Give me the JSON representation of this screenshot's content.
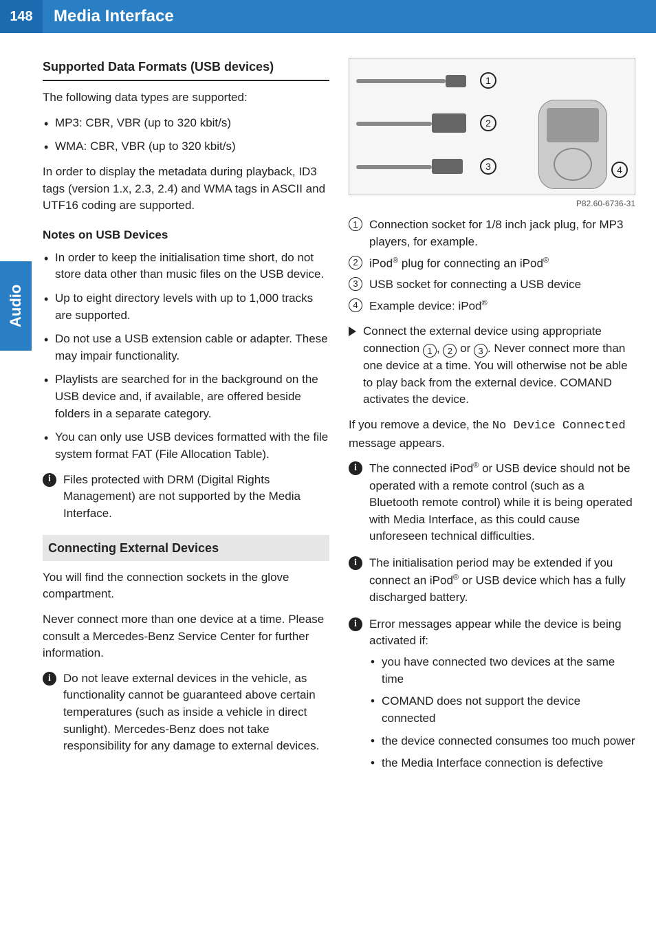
{
  "page_number": "148",
  "header_title": "Media Interface",
  "side_tab": "Audio",
  "colors": {
    "header_bg": "#2a7fc4",
    "page_num_bg": "#1a6bb0",
    "text": "#222222",
    "shaded_bg": "#e6e6e6"
  },
  "left": {
    "section1_title": "Supported Data Formats (USB devices)",
    "intro": "The following data types are supported:",
    "formats": [
      "MP3: CBR, VBR (up to 320 kbit/s)",
      "WMA: CBR, VBR (up to 320 kbit/s)"
    ],
    "metadata_para": "In order to display the metadata during playback, ID3 tags (version 1.x, 2.3, 2.4) and WMA tags in ASCII and UTF16 coding are supported.",
    "notes_title": "Notes on USB Devices",
    "notes": [
      "In order to keep the initialisation time short, do not store data other than music files on the USB device.",
      "Up to eight directory levels with up to 1,000 tracks are supported.",
      "Do not use a USB extension cable or adapter. These may impair functionality.",
      "Playlists are searched for in the background on the USB device and, if available, are offered beside folders in a separate category.",
      "You can only use USB devices formatted with the file system format FAT (File Allocation Table)."
    ],
    "drm_info": "Files protected with DRM (Digital Rights Management) are not supported by the Media Interface.",
    "section2_title": "Connecting External Devices",
    "conn_para1": "You will find the connection sockets in the glove compartment.",
    "conn_para2": "Never connect more than one device at a time. Please consult a Mercedes-Benz Service Center for further information.",
    "conn_info": "Do not leave external devices in the vehicle, as functionality cannot be guaranteed above certain temperatures (such as inside a vehicle in direct sunlight). Mercedes-Benz does not take responsibility for any damage to external devices."
  },
  "right": {
    "diagram_caption": "P82.60-6736-31",
    "diagram_labels": {
      "n1": "1",
      "n2": "2",
      "n3": "3",
      "n4": "4"
    },
    "legend": [
      {
        "n": "1",
        "text": "Connection socket for 1/8 inch jack plug, for MP3 players, for example."
      },
      {
        "n": "2",
        "text_html": "iPod<sup>®</sup> plug for connecting an iPod<sup>®</sup>"
      },
      {
        "n": "3",
        "text": "USB socket for connecting a USB device"
      },
      {
        "n": "4",
        "text_html": "Example device: iPod<sup>®</sup>"
      }
    ],
    "action_pre": "Connect the external device using appropriate connection ",
    "action_mid1": ", ",
    "action_or": " or ",
    "action_post": ". Never connect more than one device at a time. You will otherwise not be able to play back from the external device. COMAND activates the device.",
    "remove_para_pre": "If you remove a device, the ",
    "remove_code": "No Device Connected",
    "remove_para_post": " message appears.",
    "info1_html": "The connected iPod<sup>®</sup> or USB device should not be operated with a remote control (such as a Bluetooth remote control) while it is being operated with Media Interface, as this could cause unforeseen technical difficulties.",
    "info2_html": "The initialisation period may be extended if you connect an iPod<sup>®</sup> or USB device which has a fully discharged battery.",
    "info3_intro": "Error messages appear while the device is being activated if:",
    "info3_items": [
      "you have connected two devices at the same time",
      "COMAND does not support the device connected",
      "the device connected consumes too much power",
      "the Media Interface connection is defective"
    ]
  }
}
